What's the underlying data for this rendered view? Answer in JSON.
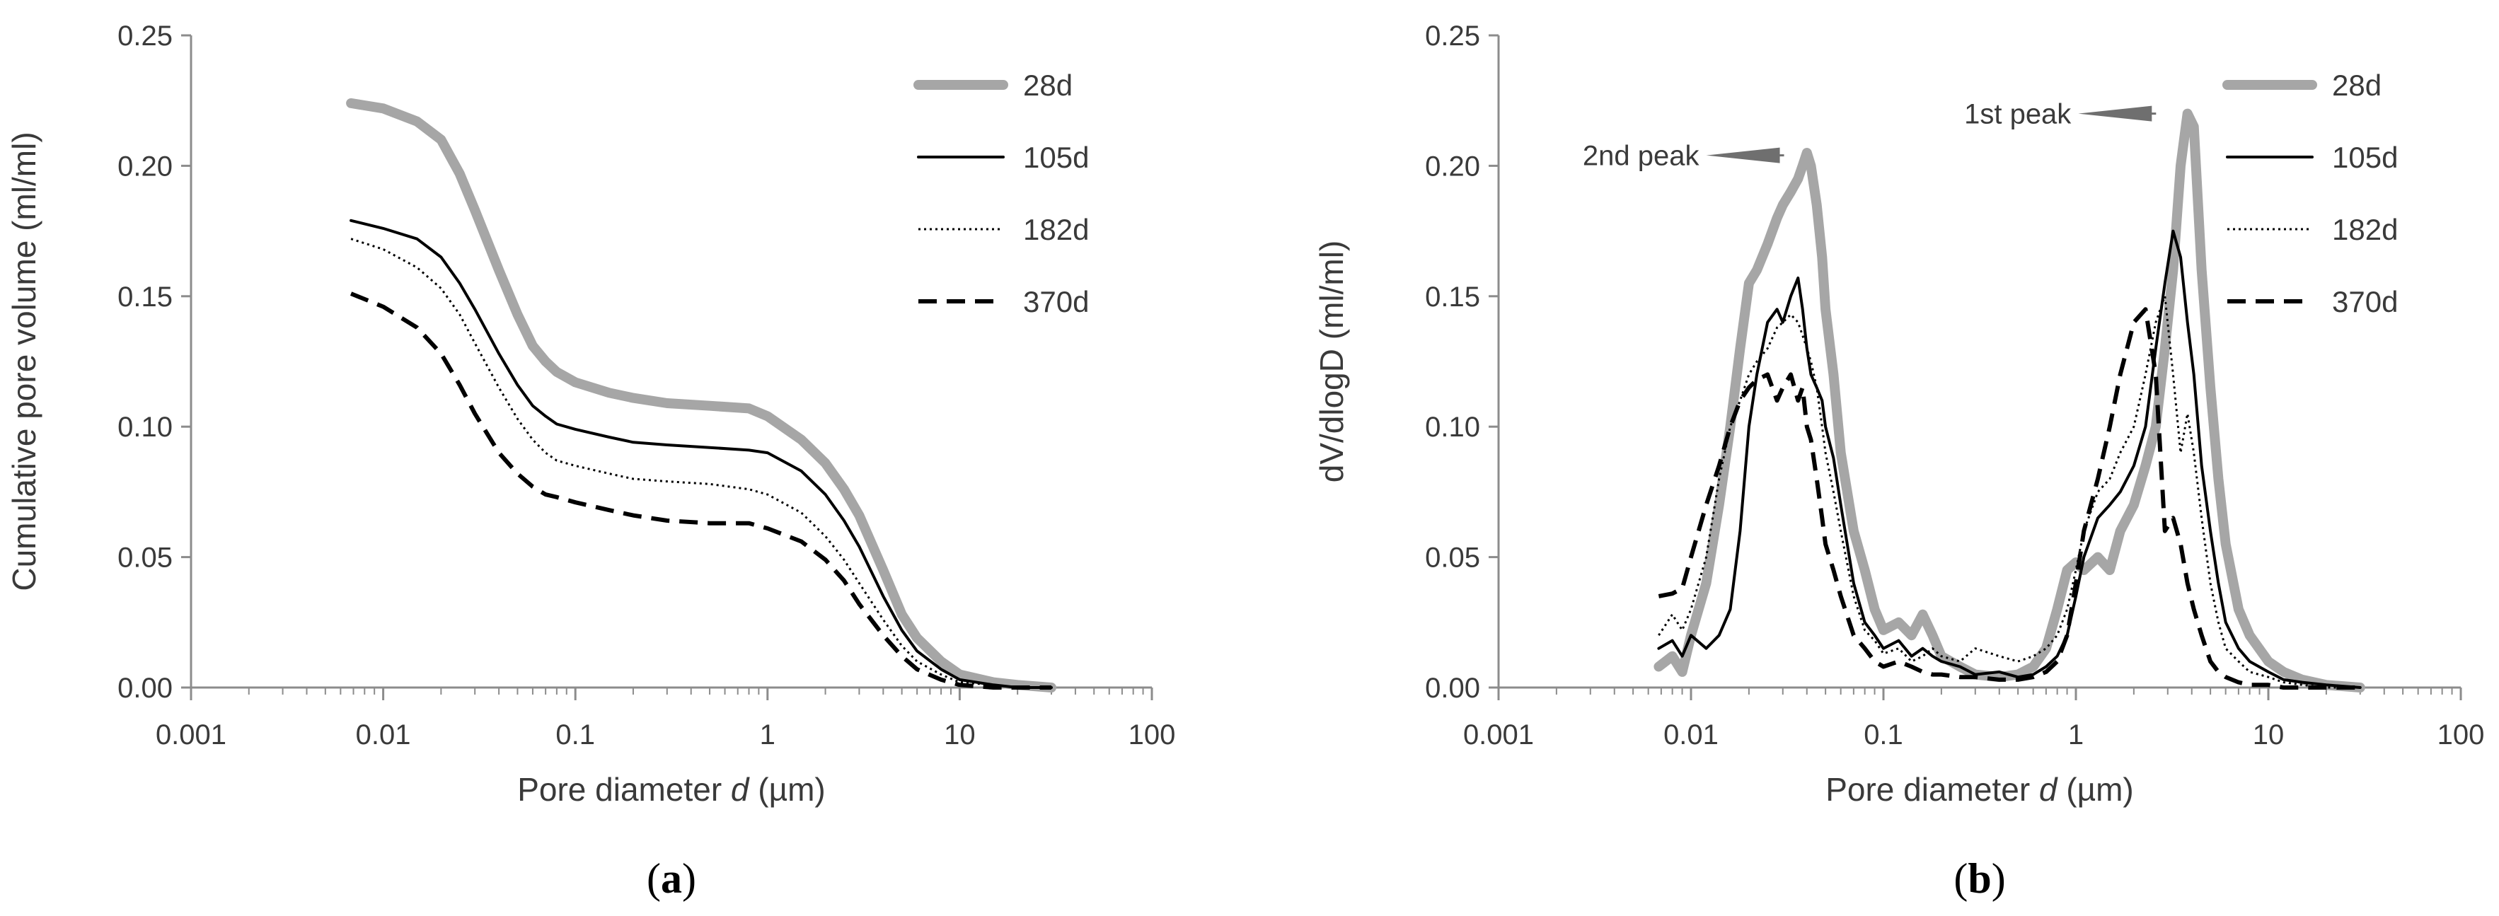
{
  "chart_data": [
    {
      "type": "line",
      "panel_label": "a",
      "title": "",
      "xlabel_prefix": "Pore diameter ",
      "xlabel_var": "d",
      "xlabel_suffix": " (µm)",
      "ylabel": "Cumulative pore volume (ml/ml)",
      "x_scale": "log",
      "xlim": [
        0.001,
        100
      ],
      "ylim": [
        0,
        0.25
      ],
      "x_ticks": [
        0.001,
        0.01,
        0.1,
        1,
        10,
        100
      ],
      "x_tick_labels": [
        "0.001",
        "0.01",
        "0.1",
        "1",
        "10",
        "100"
      ],
      "y_ticks": [
        0,
        0.05,
        0.1,
        0.15,
        0.2,
        0.25
      ],
      "y_tick_labels": [
        "0.00",
        "0.05",
        "0.10",
        "0.15",
        "0.20",
        "0.25"
      ],
      "legend_position": "top-right",
      "series": [
        {
          "name": "28d",
          "style": "thick-gray",
          "x": [
            0.0068,
            0.01,
            0.015,
            0.02,
            0.025,
            0.03,
            0.04,
            0.05,
            0.06,
            0.07,
            0.08,
            0.1,
            0.15,
            0.2,
            0.3,
            0.5,
            0.8,
            1.0,
            1.5,
            2.0,
            2.5,
            3.0,
            4.0,
            5.0,
            6.0,
            8.0,
            10.0,
            15.0,
            20.0,
            30.0
          ],
          "y": [
            0.224,
            0.222,
            0.217,
            0.21,
            0.197,
            0.183,
            0.16,
            0.143,
            0.131,
            0.125,
            0.121,
            0.117,
            0.113,
            0.111,
            0.109,
            0.108,
            0.107,
            0.104,
            0.095,
            0.086,
            0.076,
            0.066,
            0.045,
            0.028,
            0.019,
            0.01,
            0.005,
            0.002,
            0.001,
            0.0
          ]
        },
        {
          "name": "105d",
          "style": "solid-black",
          "x": [
            0.0068,
            0.01,
            0.015,
            0.02,
            0.025,
            0.03,
            0.04,
            0.05,
            0.06,
            0.07,
            0.08,
            0.1,
            0.15,
            0.2,
            0.3,
            0.5,
            0.8,
            1.0,
            1.5,
            2.0,
            2.5,
            3.0,
            4.0,
            5.0,
            6.0,
            8.0,
            10.0,
            15.0,
            20.0,
            30.0
          ],
          "y": [
            0.179,
            0.176,
            0.172,
            0.165,
            0.155,
            0.145,
            0.128,
            0.116,
            0.108,
            0.104,
            0.101,
            0.099,
            0.096,
            0.094,
            0.093,
            0.092,
            0.091,
            0.09,
            0.083,
            0.074,
            0.064,
            0.054,
            0.035,
            0.022,
            0.014,
            0.007,
            0.003,
            0.001,
            0.0,
            0.0
          ]
        },
        {
          "name": "182d",
          "style": "dotted-black",
          "x": [
            0.0068,
            0.01,
            0.015,
            0.02,
            0.025,
            0.03,
            0.04,
            0.05,
            0.06,
            0.07,
            0.08,
            0.1,
            0.15,
            0.2,
            0.3,
            0.5,
            0.8,
            1.0,
            1.5,
            2.0,
            2.5,
            3.0,
            4.0,
            5.0,
            6.0,
            8.0,
            10.0,
            15.0,
            20.0,
            30.0
          ],
          "y": [
            0.172,
            0.168,
            0.161,
            0.153,
            0.143,
            0.132,
            0.115,
            0.103,
            0.095,
            0.09,
            0.087,
            0.085,
            0.082,
            0.08,
            0.079,
            0.078,
            0.076,
            0.074,
            0.067,
            0.058,
            0.049,
            0.04,
            0.026,
            0.016,
            0.01,
            0.005,
            0.002,
            0.001,
            0.0,
            0.0
          ]
        },
        {
          "name": "370d",
          "style": "dashed-black",
          "x": [
            0.0068,
            0.01,
            0.015,
            0.02,
            0.025,
            0.03,
            0.04,
            0.05,
            0.06,
            0.07,
            0.08,
            0.1,
            0.15,
            0.2,
            0.3,
            0.5,
            0.8,
            1.0,
            1.5,
            2.0,
            2.5,
            3.0,
            4.0,
            5.0,
            6.0,
            8.0,
            10.0,
            15.0,
            20.0,
            30.0
          ],
          "y": [
            0.151,
            0.146,
            0.138,
            0.128,
            0.116,
            0.105,
            0.09,
            0.082,
            0.077,
            0.074,
            0.073,
            0.071,
            0.068,
            0.066,
            0.064,
            0.063,
            0.063,
            0.061,
            0.056,
            0.049,
            0.041,
            0.032,
            0.02,
            0.012,
            0.007,
            0.003,
            0.001,
            0.0,
            0.0,
            0.0
          ]
        }
      ]
    },
    {
      "type": "line",
      "panel_label": "b",
      "title": "",
      "xlabel_prefix": "Pore diameter ",
      "xlabel_var": "d",
      "xlabel_suffix": " (µm)",
      "ylabel": "dV/dlogD (ml/ml)",
      "x_scale": "log",
      "xlim": [
        0.001,
        100
      ],
      "ylim": [
        0,
        0.25
      ],
      "x_ticks": [
        0.001,
        0.01,
        0.1,
        1,
        10,
        100
      ],
      "x_tick_labels": [
        "0.001",
        "0.01",
        "0.1",
        "1",
        "10",
        "100"
      ],
      "y_ticks": [
        0,
        0.05,
        0.1,
        0.15,
        0.2,
        0.25
      ],
      "y_tick_labels": [
        "0.00",
        "0.05",
        "0.10",
        "0.15",
        "0.20",
        "0.25"
      ],
      "legend_position": "top-right",
      "annotations": [
        {
          "text": "2nd peak",
          "x": 0.042,
          "y": 0.204
        },
        {
          "text": "1st peak",
          "x": 3.6,
          "y": 0.22
        }
      ],
      "series": [
        {
          "name": "28d",
          "style": "thick-gray",
          "x": [
            0.0068,
            0.008,
            0.009,
            0.01,
            0.012,
            0.014,
            0.016,
            0.018,
            0.02,
            0.022,
            0.025,
            0.028,
            0.03,
            0.033,
            0.036,
            0.038,
            0.04,
            0.042,
            0.045,
            0.048,
            0.05,
            0.055,
            0.06,
            0.07,
            0.08,
            0.09,
            0.1,
            0.12,
            0.14,
            0.16,
            0.18,
            0.2,
            0.25,
            0.3,
            0.4,
            0.5,
            0.6,
            0.7,
            0.8,
            0.9,
            1.0,
            1.1,
            1.3,
            1.5,
            1.7,
            2.0,
            2.3,
            2.6,
            2.9,
            3.2,
            3.5,
            3.8,
            4.1,
            4.5,
            5.0,
            5.5,
            6.0,
            7.0,
            8.0,
            10.0,
            12.0,
            15.0,
            20.0,
            30.0
          ],
          "y": [
            0.008,
            0.012,
            0.006,
            0.02,
            0.04,
            0.07,
            0.1,
            0.13,
            0.155,
            0.16,
            0.17,
            0.18,
            0.185,
            0.19,
            0.195,
            0.2,
            0.205,
            0.2,
            0.185,
            0.165,
            0.145,
            0.12,
            0.09,
            0.06,
            0.045,
            0.03,
            0.022,
            0.025,
            0.02,
            0.028,
            0.02,
            0.012,
            0.008,
            0.005,
            0.004,
            0.005,
            0.008,
            0.015,
            0.03,
            0.045,
            0.048,
            0.045,
            0.05,
            0.045,
            0.06,
            0.07,
            0.085,
            0.1,
            0.13,
            0.16,
            0.2,
            0.22,
            0.215,
            0.16,
            0.115,
            0.08,
            0.055,
            0.03,
            0.02,
            0.01,
            0.006,
            0.003,
            0.001,
            0.0
          ]
        },
        {
          "name": "105d",
          "style": "solid-black",
          "x": [
            0.0068,
            0.008,
            0.009,
            0.01,
            0.012,
            0.014,
            0.016,
            0.018,
            0.02,
            0.022,
            0.025,
            0.028,
            0.03,
            0.033,
            0.036,
            0.038,
            0.04,
            0.042,
            0.045,
            0.048,
            0.05,
            0.055,
            0.06,
            0.07,
            0.08,
            0.09,
            0.1,
            0.12,
            0.14,
            0.16,
            0.18,
            0.2,
            0.25,
            0.3,
            0.4,
            0.5,
            0.6,
            0.7,
            0.8,
            0.9,
            1.0,
            1.1,
            1.3,
            1.5,
            1.7,
            2.0,
            2.3,
            2.6,
            2.9,
            3.2,
            3.5,
            3.8,
            4.1,
            4.5,
            5.0,
            5.5,
            6.0,
            7.0,
            8.0,
            10.0,
            12.0,
            15.0,
            20.0,
            30.0
          ],
          "y": [
            0.015,
            0.018,
            0.012,
            0.02,
            0.015,
            0.02,
            0.03,
            0.06,
            0.1,
            0.12,
            0.14,
            0.145,
            0.14,
            0.15,
            0.157,
            0.145,
            0.13,
            0.12,
            0.115,
            0.11,
            0.1,
            0.088,
            0.07,
            0.04,
            0.025,
            0.02,
            0.015,
            0.018,
            0.012,
            0.015,
            0.012,
            0.01,
            0.008,
            0.005,
            0.006,
            0.004,
            0.005,
            0.008,
            0.012,
            0.02,
            0.035,
            0.05,
            0.065,
            0.07,
            0.075,
            0.085,
            0.1,
            0.13,
            0.155,
            0.175,
            0.165,
            0.14,
            0.12,
            0.085,
            0.06,
            0.04,
            0.025,
            0.015,
            0.01,
            0.006,
            0.003,
            0.002,
            0.001,
            0.0
          ]
        },
        {
          "name": "182d",
          "style": "dotted-black",
          "x": [
            0.0068,
            0.008,
            0.009,
            0.01,
            0.012,
            0.014,
            0.016,
            0.018,
            0.02,
            0.022,
            0.025,
            0.028,
            0.03,
            0.033,
            0.036,
            0.038,
            0.04,
            0.042,
            0.045,
            0.048,
            0.05,
            0.055,
            0.06,
            0.07,
            0.08,
            0.09,
            0.1,
            0.12,
            0.14,
            0.16,
            0.18,
            0.2,
            0.25,
            0.3,
            0.4,
            0.5,
            0.6,
            0.7,
            0.8,
            0.9,
            1.0,
            1.1,
            1.3,
            1.5,
            1.7,
            2.0,
            2.3,
            2.6,
            2.9,
            3.2,
            3.5,
            3.8,
            4.1,
            4.5,
            5.0,
            5.5,
            6.0,
            7.0,
            8.0,
            10.0,
            12.0,
            15.0,
            20.0,
            30.0
          ],
          "y": [
            0.02,
            0.028,
            0.022,
            0.03,
            0.05,
            0.08,
            0.1,
            0.11,
            0.12,
            0.125,
            0.13,
            0.138,
            0.14,
            0.143,
            0.14,
            0.135,
            0.13,
            0.125,
            0.115,
            0.1,
            0.09,
            0.075,
            0.06,
            0.035,
            0.022,
            0.018,
            0.013,
            0.015,
            0.01,
            0.012,
            0.015,
            0.012,
            0.01,
            0.015,
            0.012,
            0.01,
            0.012,
            0.015,
            0.02,
            0.03,
            0.045,
            0.06,
            0.075,
            0.08,
            0.09,
            0.1,
            0.12,
            0.14,
            0.15,
            0.12,
            0.09,
            0.105,
            0.09,
            0.065,
            0.04,
            0.025,
            0.015,
            0.01,
            0.006,
            0.004,
            0.002,
            0.001,
            0.0,
            0.0
          ]
        },
        {
          "name": "370d",
          "style": "dashed-black",
          "x": [
            0.0068,
            0.008,
            0.009,
            0.01,
            0.012,
            0.014,
            0.016,
            0.018,
            0.02,
            0.022,
            0.025,
            0.028,
            0.03,
            0.033,
            0.036,
            0.038,
            0.04,
            0.042,
            0.045,
            0.048,
            0.05,
            0.055,
            0.06,
            0.07,
            0.08,
            0.09,
            0.1,
            0.12,
            0.14,
            0.16,
            0.18,
            0.2,
            0.25,
            0.3,
            0.4,
            0.5,
            0.6,
            0.7,
            0.8,
            0.9,
            1.0,
            1.1,
            1.3,
            1.5,
            1.7,
            2.0,
            2.3,
            2.6,
            2.9,
            3.2,
            3.5,
            3.8,
            4.1,
            4.5,
            5.0,
            5.5,
            6.0,
            7.0,
            8.0,
            10.0,
            12.0,
            15.0,
            20.0,
            30.0
          ],
          "y": [
            0.035,
            0.036,
            0.038,
            0.05,
            0.07,
            0.085,
            0.1,
            0.11,
            0.115,
            0.118,
            0.12,
            0.11,
            0.115,
            0.12,
            0.11,
            0.115,
            0.1,
            0.095,
            0.08,
            0.065,
            0.055,
            0.045,
            0.035,
            0.02,
            0.015,
            0.01,
            0.008,
            0.01,
            0.008,
            0.006,
            0.005,
            0.005,
            0.004,
            0.004,
            0.003,
            0.003,
            0.004,
            0.006,
            0.01,
            0.02,
            0.04,
            0.06,
            0.08,
            0.1,
            0.12,
            0.14,
            0.145,
            0.12,
            0.06,
            0.065,
            0.055,
            0.04,
            0.03,
            0.02,
            0.01,
            0.006,
            0.004,
            0.002,
            0.001,
            0.001,
            0.0,
            0.0,
            0.0,
            0.0
          ]
        }
      ]
    }
  ]
}
